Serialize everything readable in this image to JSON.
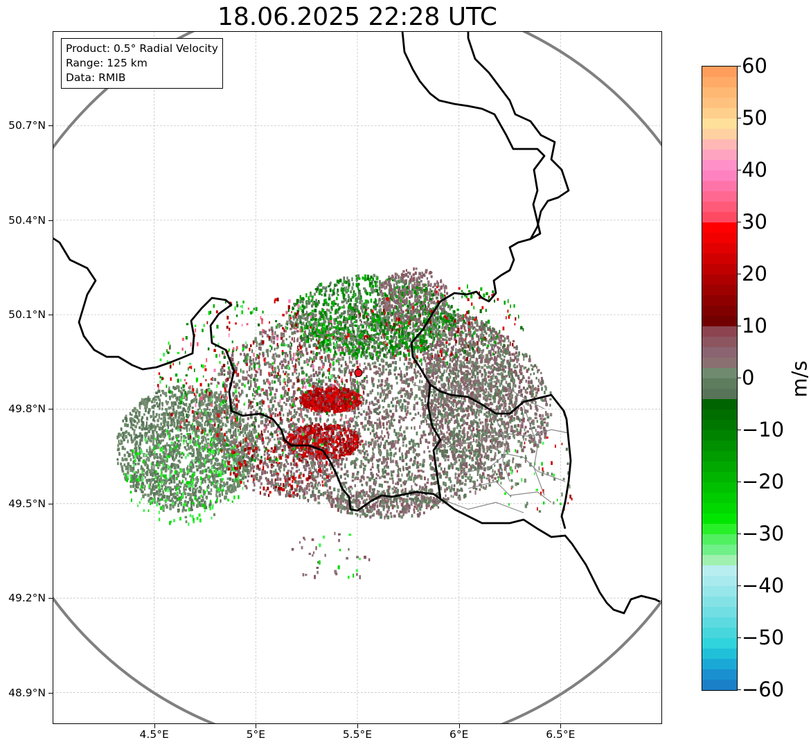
{
  "title": "18.06.2025 22:28 UTC",
  "info_box": {
    "product": "Product: 0.5° Radial Velocity",
    "range": "Range: 125 km",
    "data": "Data: RMIB"
  },
  "map": {
    "lon_range": [
      4.0,
      7.0
    ],
    "lat_range": [
      48.8,
      51.0
    ],
    "lon_ticks": [
      {
        "value": 4.5,
        "label": "4.5°E"
      },
      {
        "value": 5.0,
        "label": "5°E"
      },
      {
        "value": 5.5,
        "label": "5.5°E"
      },
      {
        "value": 6.0,
        "label": "6°E"
      },
      {
        "value": 6.5,
        "label": "6.5°E"
      }
    ],
    "lat_ticks": [
      {
        "value": 50.7,
        "label": "50.7°N"
      },
      {
        "value": 50.4,
        "label": "50.4°N"
      },
      {
        "value": 50.1,
        "label": "50.1°N"
      },
      {
        "value": 49.8,
        "label": "49.8°N"
      },
      {
        "value": 49.5,
        "label": "49.5°N"
      },
      {
        "value": 49.2,
        "label": "49.2°N"
      },
      {
        "value": 48.9,
        "label": "48.9°N"
      }
    ],
    "gridlines": true,
    "radar_site": {
      "lon": 5.505,
      "lat": 49.915,
      "color": "#e8121a"
    },
    "range_ring_km": 125,
    "colors": {
      "border": "#000000",
      "admin_border": "#888888",
      "range_ring": "#808080",
      "grid": "#c8c8c8"
    }
  },
  "colorbar": {
    "unit": "m/s",
    "min": -60,
    "max": 60,
    "ticks": [
      {
        "value": 60,
        "label": "60"
      },
      {
        "value": 50,
        "label": "50"
      },
      {
        "value": 40,
        "label": "40"
      },
      {
        "value": 30,
        "label": "30"
      },
      {
        "value": 20,
        "label": "20"
      },
      {
        "value": 10,
        "label": "10"
      },
      {
        "value": 0,
        "label": "0"
      },
      {
        "value": -10,
        "label": "−10"
      },
      {
        "value": -20,
        "label": "−20"
      },
      {
        "value": -30,
        "label": "−30"
      },
      {
        "value": -40,
        "label": "−40"
      },
      {
        "value": -50,
        "label": "−50"
      },
      {
        "value": -60,
        "label": "−60"
      }
    ],
    "colors_top_to_bottom": [
      "#ff9e5c",
      "#ffaa66",
      "#ffb873",
      "#ffc27e",
      "#ffcf8c",
      "#ffe09a",
      "#ffd0a0",
      "#ffb8b5",
      "#ffa4c0",
      "#ff90c8",
      "#ff82c0",
      "#ff74a8",
      "#ff6890",
      "#ff5a78",
      "#ff4a62",
      "#ff0000",
      "#f20000",
      "#e20000",
      "#d10000",
      "#c00000",
      "#ae0000",
      "#9e0000",
      "#8e0000",
      "#800000",
      "#720000",
      "#8c4450",
      "#8c5560",
      "#8a6470",
      "#8a7070",
      "#708a70",
      "#5e7c5e",
      "#587458",
      "#006400",
      "#006e00",
      "#007800",
      "#008400",
      "#009000",
      "#009c00",
      "#00a800",
      "#00b400",
      "#00c000",
      "#00cc00",
      "#00d800",
      "#00e600",
      "#28f028",
      "#50f060",
      "#70f088",
      "#a0f0b0",
      "#b8eef0",
      "#a8eaee",
      "#96e6ea",
      "#84e2e6",
      "#70dee2",
      "#5cdae0",
      "#46d6dc",
      "#30d4dc",
      "#20c0d8",
      "#1aa8d6",
      "#1a90d0",
      "#1a80c8"
    ]
  }
}
